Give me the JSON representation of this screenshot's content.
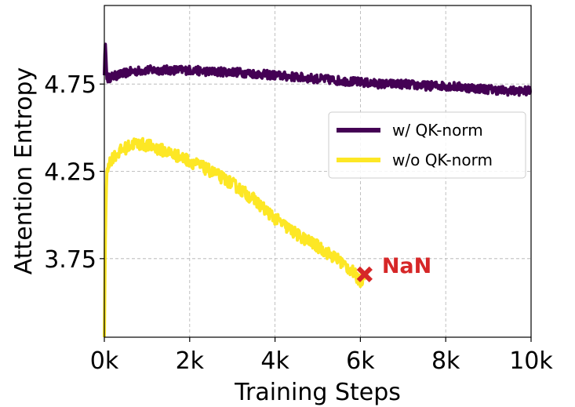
{
  "chart_data": {
    "type": "line",
    "title": "",
    "xlabel": "Training Steps",
    "ylabel": "Attention Entropy",
    "xlim": [
      0,
      10000
    ],
    "ylim": [
      3.3,
      5.2
    ],
    "xticks": [
      0,
      2000,
      4000,
      6000,
      8000,
      10000
    ],
    "xtick_labels": [
      "0k",
      "2k",
      "4k",
      "6k",
      "8k",
      "10k"
    ],
    "yticks": [
      3.75,
      4.25,
      4.75
    ],
    "ytick_labels": [
      "3.75",
      "4.25",
      "4.75"
    ],
    "grid": true,
    "legend_location": "center-right",
    "series": [
      {
        "name": "w/ QK-norm",
        "color": "#440154",
        "x": [
          0,
          20,
          60,
          150,
          300,
          600,
          1000,
          1500,
          2000,
          2500,
          3000,
          3500,
          4000,
          4500,
          5000,
          5500,
          6000,
          6500,
          7000,
          7500,
          8000,
          8500,
          9000,
          9500,
          10000
        ],
        "y": [
          4.8,
          5.0,
          4.78,
          4.79,
          4.8,
          4.82,
          4.83,
          4.83,
          4.83,
          4.82,
          4.82,
          4.81,
          4.8,
          4.79,
          4.78,
          4.77,
          4.76,
          4.75,
          4.75,
          4.74,
          4.74,
          4.73,
          4.72,
          4.71,
          4.71
        ],
        "noise": 0.025
      },
      {
        "name": "w/o QK-norm",
        "color": "#fde725",
        "x": [
          0,
          20,
          40,
          60,
          100,
          200,
          400,
          700,
          1000,
          1500,
          2000,
          2500,
          3000,
          3500,
          4000,
          4500,
          5000,
          5500,
          5800,
          6000,
          6100
        ],
        "y": [
          3.3,
          3.8,
          4.1,
          4.25,
          4.3,
          4.33,
          4.37,
          4.41,
          4.4,
          4.36,
          4.31,
          4.25,
          4.18,
          4.09,
          3.98,
          3.89,
          3.82,
          3.74,
          3.68,
          3.62,
          3.66
        ],
        "noise": 0.035
      }
    ],
    "annotations": [
      {
        "text": "NaN",
        "x": 6100,
        "y": 3.66,
        "marker": "x",
        "color": "#d62728"
      }
    ]
  }
}
